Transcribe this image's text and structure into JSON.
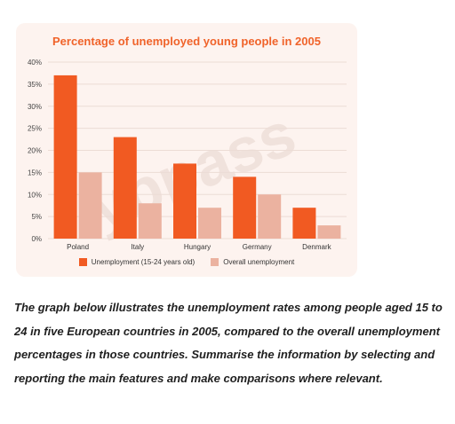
{
  "colors": {
    "series1": "#f15a22",
    "series2": "#ebb2a0",
    "title": "#f0632a",
    "grid": "#ecdcd5",
    "card": "#fdf3ef"
  },
  "watermark": "ybpass",
  "chart_data": {
    "type": "bar",
    "title": "Percentage of unemployed young people in 2005",
    "categories": [
      "Poland",
      "Italy",
      "Hungary",
      "Germany",
      "Denmark"
    ],
    "series": [
      {
        "name": "Unemployment (15-24 years old)",
        "values": [
          37,
          23,
          17,
          14,
          7
        ]
      },
      {
        "name": "Overall unemployment",
        "values": [
          15,
          8,
          7,
          10,
          3
        ]
      }
    ],
    "y_ticks": [
      "0%",
      "5%",
      "10%",
      "15%",
      "20%",
      "25%",
      "30%",
      "35%",
      "40%"
    ],
    "ylim": [
      0,
      40
    ],
    "grid": true,
    "legend": "bottom"
  },
  "prompt_text": "The graph below illustrates the unemployment rates among people aged 15 to 24 in five European countries in 2005, compared to the overall unemployment percentages in those countries. Summarise the information by selecting and reporting the main features and make comparisons where relevant."
}
